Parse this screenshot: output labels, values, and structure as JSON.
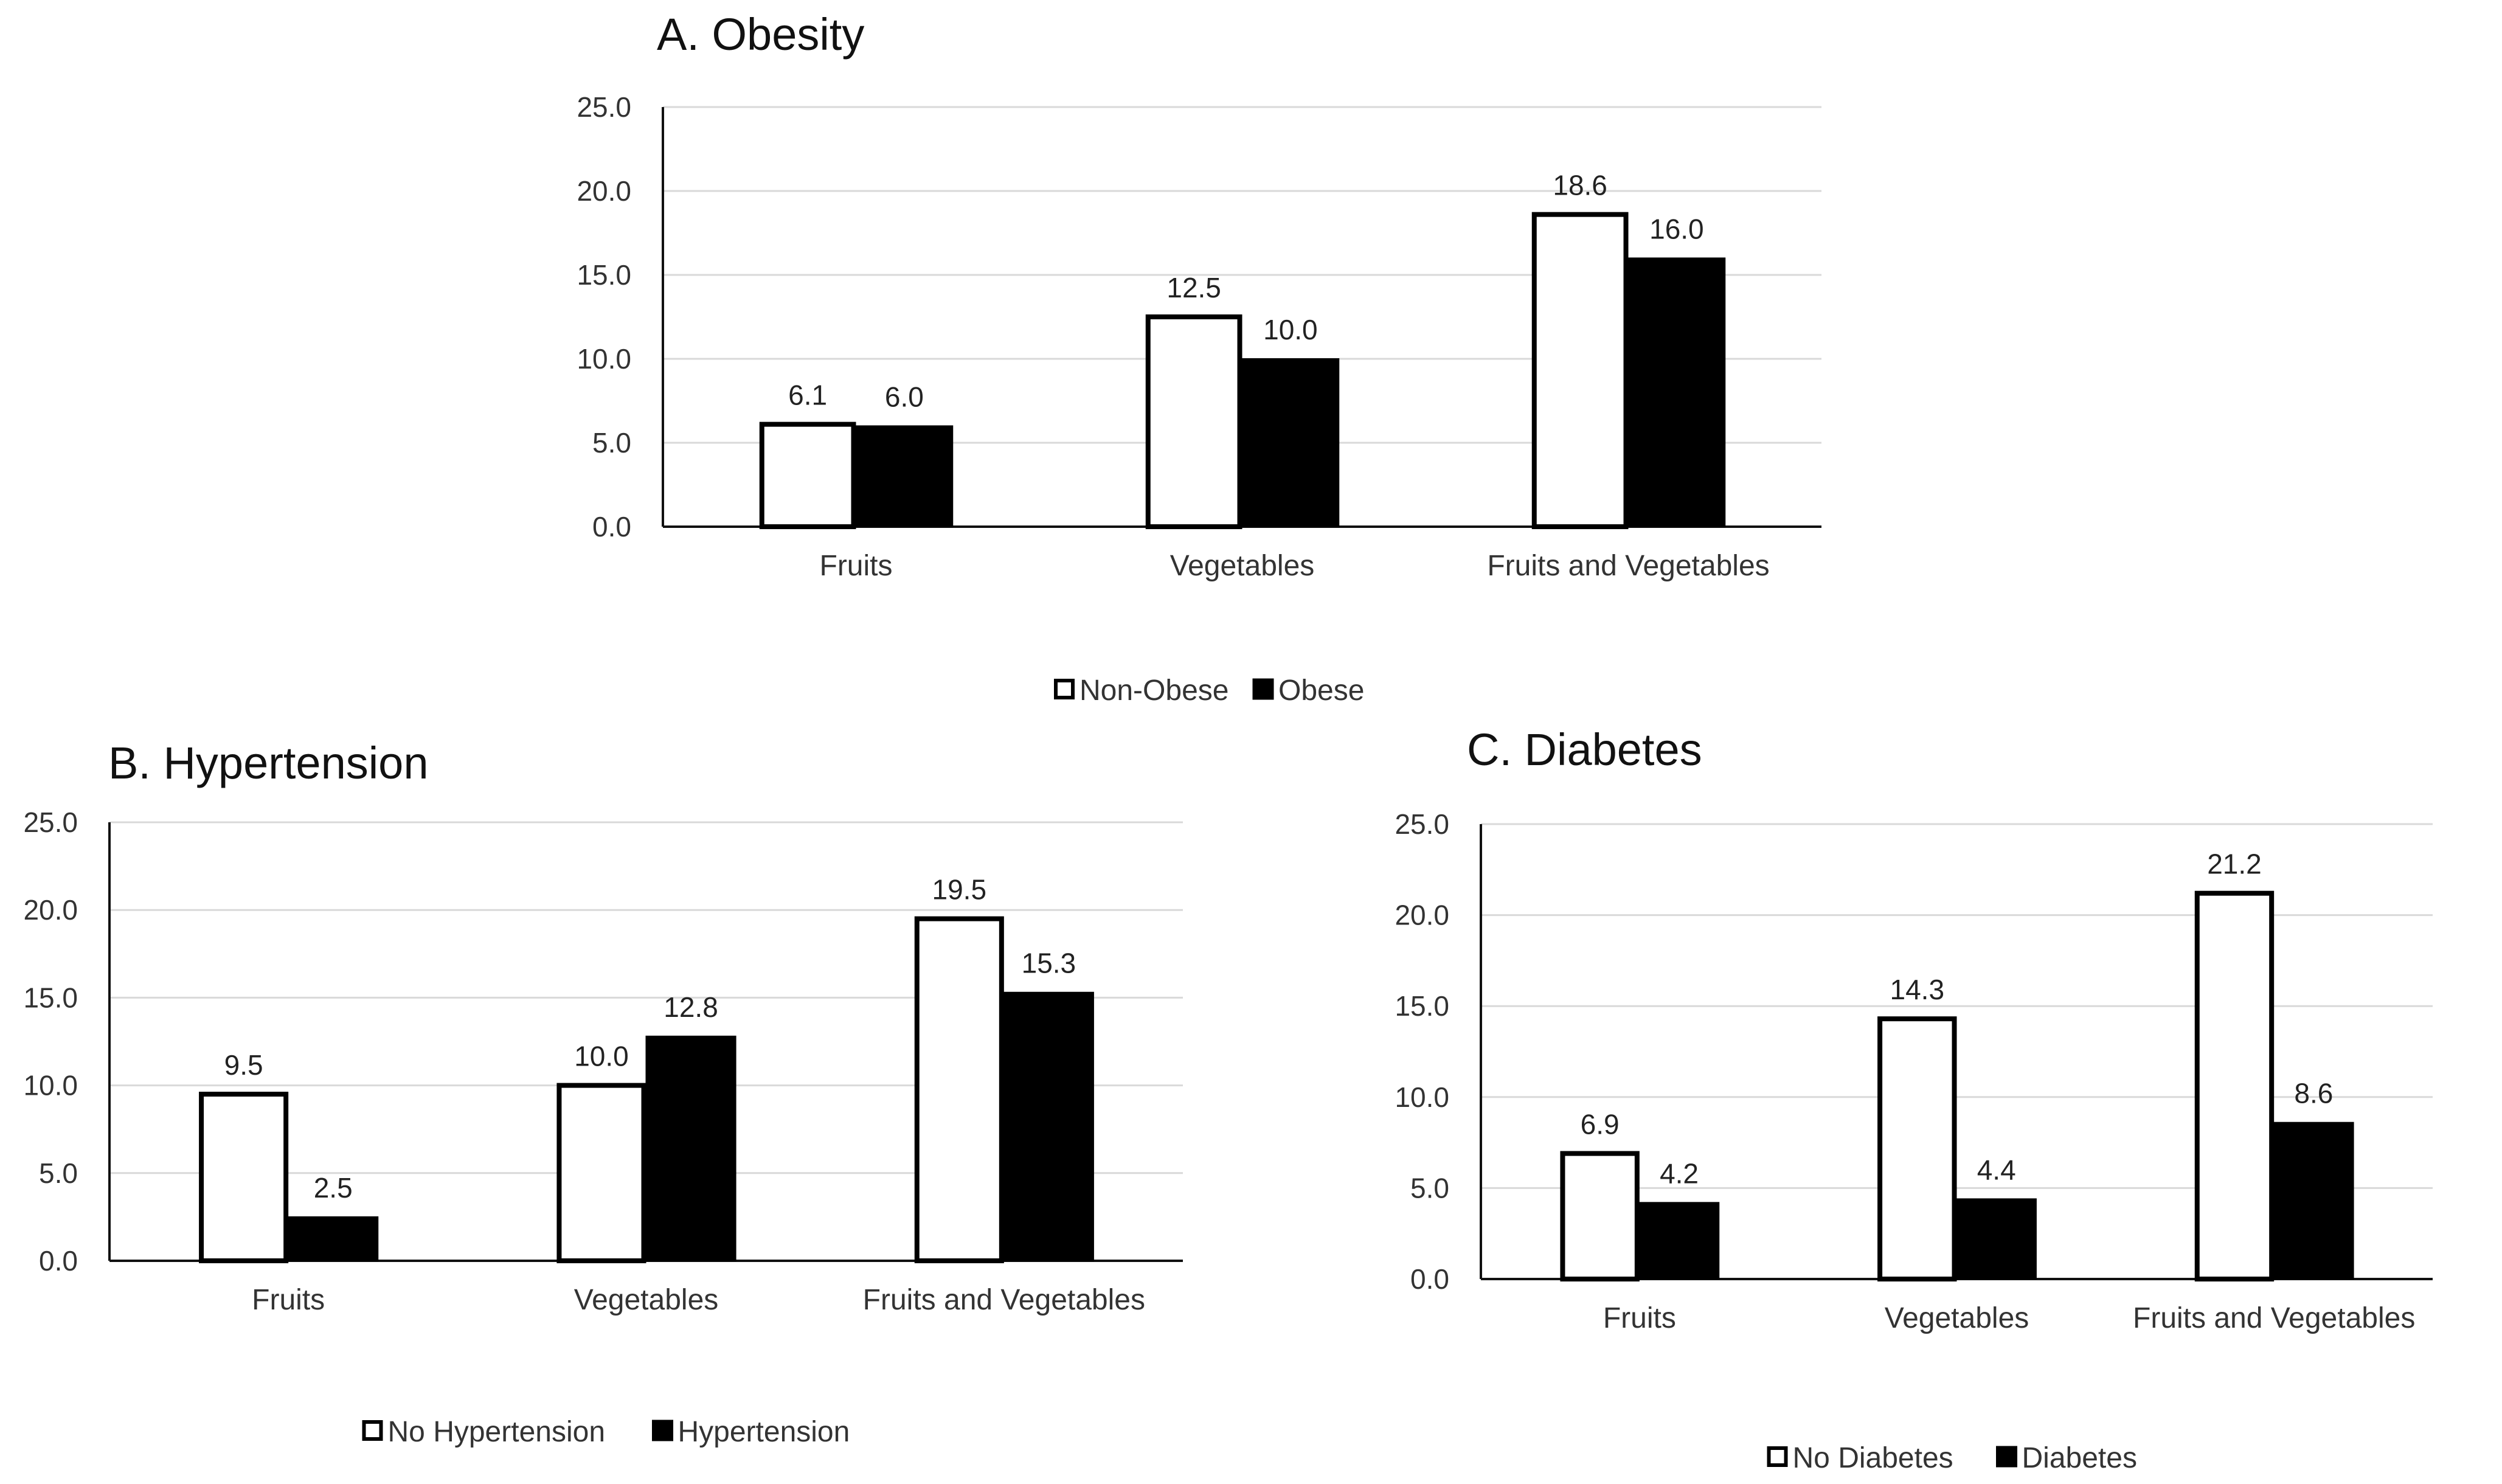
{
  "chart_data": [
    {
      "type": "bar",
      "title": "A. Obesity",
      "categories": [
        "Fruits",
        "Vegetables",
        "Fruits and Vegetables"
      ],
      "series": [
        {
          "name": "Non-Obese",
          "values": [
            6.1,
            12.5,
            18.6
          ],
          "fill": "#ffffff"
        },
        {
          "name": "Obese",
          "values": [
            6.0,
            10.0,
            16.0
          ],
          "fill": "#000000"
        }
      ],
      "yticks": [
        "0.0",
        "5.0",
        "10.0",
        "15.0",
        "20.0",
        "25.0"
      ],
      "ylim": [
        0,
        25
      ],
      "grid": true,
      "legend": "bottom",
      "xlabel": "",
      "ylabel": ""
    },
    {
      "type": "bar",
      "title": "B. Hypertension",
      "categories": [
        "Fruits",
        "Vegetables",
        "Fruits and Vegetables"
      ],
      "series": [
        {
          "name": "No Hypertension",
          "values": [
            9.5,
            10.0,
            19.5
          ],
          "fill": "#ffffff"
        },
        {
          "name": "Hypertension",
          "values": [
            2.5,
            12.8,
            15.3
          ],
          "fill": "#000000"
        }
      ],
      "yticks": [
        "0.0",
        "5.0",
        "10.0",
        "15.0",
        "20.0",
        "25.0"
      ],
      "ylim": [
        0,
        25
      ],
      "grid": true,
      "legend": "bottom",
      "xlabel": "",
      "ylabel": ""
    },
    {
      "type": "bar",
      "title": "C. Diabetes",
      "categories": [
        "Fruits",
        "Vegetables",
        "Fruits and Vegetables"
      ],
      "series": [
        {
          "name": "No Diabetes",
          "values": [
            6.9,
            14.3,
            21.2
          ],
          "fill": "#ffffff"
        },
        {
          "name": "Diabetes",
          "values": [
            4.2,
            4.4,
            8.6
          ],
          "fill": "#000000"
        }
      ],
      "yticks": [
        "0.0",
        "5.0",
        "10.0",
        "15.0",
        "20.0",
        "25.0"
      ],
      "ylim": [
        0,
        25
      ],
      "grid": true,
      "legend": "bottom",
      "xlabel": "",
      "ylabel": ""
    }
  ]
}
